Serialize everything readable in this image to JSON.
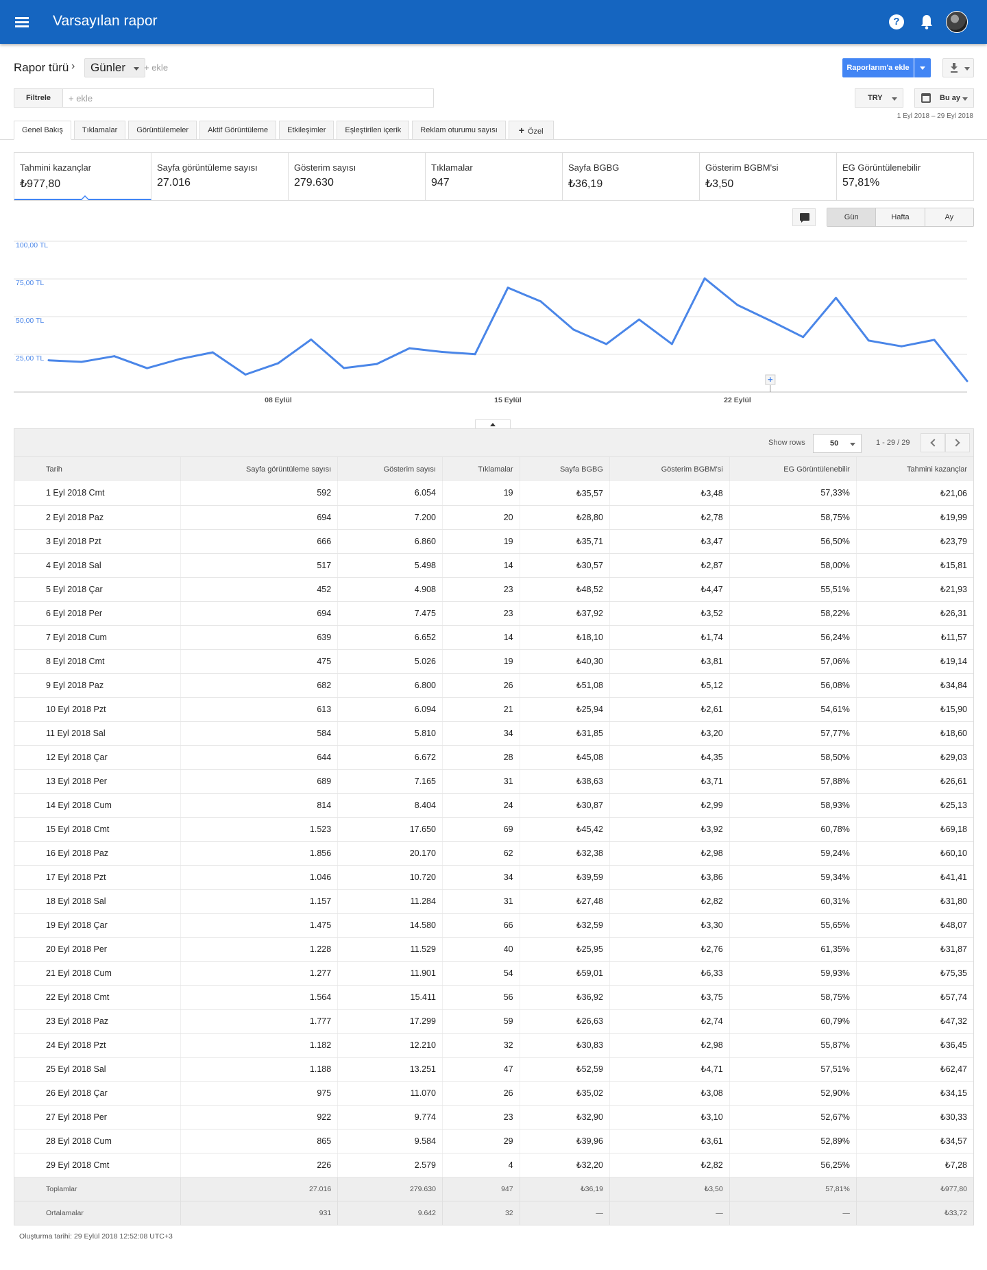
{
  "header": {
    "title": "Varsayılan rapor",
    "help_glyph": "?"
  },
  "colors": {
    "appbar": "#1565c0",
    "primary": "#4285f4",
    "line": "#4a86e8"
  },
  "breadcrumb": {
    "report_type": "Rapor türü",
    "separator": "›",
    "dimension": "Günler",
    "add": "+ ekle"
  },
  "actions": {
    "add_to_reports": "Raporlarım'a ekle",
    "download_icon": "download-icon"
  },
  "filter": {
    "label": "Filtrele",
    "placeholder": "+ ekle"
  },
  "currency": "TRY",
  "date_preset": "Bu ay",
  "date_range": "1 Eyl 2018 – 29 Eyl 2018",
  "tabs": [
    {
      "label": "Genel Bakış",
      "active": true
    },
    {
      "label": "Tıklamalar"
    },
    {
      "label": "Görüntülemeler"
    },
    {
      "label": "Aktif Görüntüleme"
    },
    {
      "label": "Etkileşimler"
    },
    {
      "label": "Eşleştirilen içerik"
    },
    {
      "label": "Reklam oturumu sayısı"
    },
    {
      "label": "Özel",
      "icon": "plus-icon"
    }
  ],
  "metrics": [
    {
      "label": "Tahmini kazançlar",
      "value": "₺977,80",
      "active": true
    },
    {
      "label": "Sayfa görüntüleme sayısı",
      "value": "27.016"
    },
    {
      "label": "Gösterim sayısı",
      "value": "279.630"
    },
    {
      "label": "Tıklamalar",
      "value": "947"
    },
    {
      "label": "Sayfa BGBG",
      "value": "₺36,19"
    },
    {
      "label": "Gösterim BGBM'si",
      "value": "₺3,50"
    },
    {
      "label": "EG Görüntülenebilir",
      "value": "57,81%"
    }
  ],
  "granularity": {
    "options": [
      "Gün",
      "Hafta",
      "Ay"
    ],
    "selected": "Gün"
  },
  "chart_data": {
    "type": "line",
    "series": [
      {
        "values": [
          21.06,
          19.99,
          23.79,
          15.81,
          21.93,
          26.31,
          11.57,
          19.14,
          34.84,
          15.9,
          18.6,
          29.03,
          26.61,
          25.13,
          69.18,
          60.1,
          41.41,
          31.8,
          48.07,
          31.87,
          75.35,
          57.74,
          47.32,
          36.45,
          62.47,
          34.15,
          30.33,
          34.57,
          7.28
        ]
      }
    ],
    "x": [
      "1 Eyl",
      "2 Eyl",
      "3 Eyl",
      "4 Eyl",
      "5 Eyl",
      "6 Eyl",
      "7 Eyl",
      "8 Eyl",
      "9 Eyl",
      "10 Eyl",
      "11 Eyl",
      "12 Eyl",
      "13 Eyl",
      "14 Eyl",
      "15 Eyl",
      "16 Eyl",
      "17 Eyl",
      "18 Eyl",
      "19 Eyl",
      "20 Eyl",
      "21 Eyl",
      "22 Eyl",
      "23 Eyl",
      "24 Eyl",
      "25 Eyl",
      "26 Eyl",
      "27 Eyl",
      "28 Eyl",
      "29 Eyl"
    ],
    "ylim": [
      0,
      100
    ],
    "yticks": [
      {
        "value": 100,
        "label": "100,00 TL"
      },
      {
        "value": 75,
        "label": "75,00 TL"
      },
      {
        "value": 50,
        "label": "50,00 TL"
      },
      {
        "value": 25,
        "label": "25,00 TL"
      }
    ],
    "xticks": [
      {
        "index": 7,
        "label": "08 Eylül"
      },
      {
        "index": 14,
        "label": "15 Eylül"
      },
      {
        "index": 21,
        "label": "22 Eylül"
      }
    ],
    "grid": true,
    "annotation_marker": {
      "index": 22,
      "label": "+"
    }
  },
  "table": {
    "show_rows_label": "Show rows",
    "rows_per_page": "50",
    "page_info": "1 - 29 / 29",
    "columns": [
      "Tarih",
      "Sayfa görüntüleme sayısı",
      "Gösterim sayısı",
      "Tıklamalar",
      "Sayfa BGBG",
      "Gösterim BGBM'si",
      "EG Görüntülenebilir",
      "Tahmini kazançlar"
    ],
    "rows": [
      [
        "1 Eyl 2018 Cmt",
        "592",
        "6.054",
        "19",
        "₺35,57",
        "₺3,48",
        "57,33%",
        "₺21,06"
      ],
      [
        "2 Eyl 2018 Paz",
        "694",
        "7.200",
        "20",
        "₺28,80",
        "₺2,78",
        "58,75%",
        "₺19,99"
      ],
      [
        "3 Eyl 2018 Pzt",
        "666",
        "6.860",
        "19",
        "₺35,71",
        "₺3,47",
        "56,50%",
        "₺23,79"
      ],
      [
        "4 Eyl 2018 Sal",
        "517",
        "5.498",
        "14",
        "₺30,57",
        "₺2,87",
        "58,00%",
        "₺15,81"
      ],
      [
        "5 Eyl 2018 Çar",
        "452",
        "4.908",
        "23",
        "₺48,52",
        "₺4,47",
        "55,51%",
        "₺21,93"
      ],
      [
        "6 Eyl 2018 Per",
        "694",
        "7.475",
        "23",
        "₺37,92",
        "₺3,52",
        "58,22%",
        "₺26,31"
      ],
      [
        "7 Eyl 2018 Cum",
        "639",
        "6.652",
        "14",
        "₺18,10",
        "₺1,74",
        "56,24%",
        "₺11,57"
      ],
      [
        "8 Eyl 2018 Cmt",
        "475",
        "5.026",
        "19",
        "₺40,30",
        "₺3,81",
        "57,06%",
        "₺19,14"
      ],
      [
        "9 Eyl 2018 Paz",
        "682",
        "6.800",
        "26",
        "₺51,08",
        "₺5,12",
        "56,08%",
        "₺34,84"
      ],
      [
        "10 Eyl 2018 Pzt",
        "613",
        "6.094",
        "21",
        "₺25,94",
        "₺2,61",
        "54,61%",
        "₺15,90"
      ],
      [
        "11 Eyl 2018 Sal",
        "584",
        "5.810",
        "34",
        "₺31,85",
        "₺3,20",
        "57,77%",
        "₺18,60"
      ],
      [
        "12 Eyl 2018 Çar",
        "644",
        "6.672",
        "28",
        "₺45,08",
        "₺4,35",
        "58,50%",
        "₺29,03"
      ],
      [
        "13 Eyl 2018 Per",
        "689",
        "7.165",
        "31",
        "₺38,63",
        "₺3,71",
        "57,88%",
        "₺26,61"
      ],
      [
        "14 Eyl 2018 Cum",
        "814",
        "8.404",
        "24",
        "₺30,87",
        "₺2,99",
        "58,93%",
        "₺25,13"
      ],
      [
        "15 Eyl 2018 Cmt",
        "1.523",
        "17.650",
        "69",
        "₺45,42",
        "₺3,92",
        "60,78%",
        "₺69,18"
      ],
      [
        "16 Eyl 2018 Paz",
        "1.856",
        "20.170",
        "62",
        "₺32,38",
        "₺2,98",
        "59,24%",
        "₺60,10"
      ],
      [
        "17 Eyl 2018 Pzt",
        "1.046",
        "10.720",
        "34",
        "₺39,59",
        "₺3,86",
        "59,34%",
        "₺41,41"
      ],
      [
        "18 Eyl 2018 Sal",
        "1.157",
        "11.284",
        "31",
        "₺27,48",
        "₺2,82",
        "60,31%",
        "₺31,80"
      ],
      [
        "19 Eyl 2018 Çar",
        "1.475",
        "14.580",
        "66",
        "₺32,59",
        "₺3,30",
        "55,65%",
        "₺48,07"
      ],
      [
        "20 Eyl 2018 Per",
        "1.228",
        "11.529",
        "40",
        "₺25,95",
        "₺2,76",
        "61,35%",
        "₺31,87"
      ],
      [
        "21 Eyl 2018 Cum",
        "1.277",
        "11.901",
        "54",
        "₺59,01",
        "₺6,33",
        "59,93%",
        "₺75,35"
      ],
      [
        "22 Eyl 2018 Cmt",
        "1.564",
        "15.411",
        "56",
        "₺36,92",
        "₺3,75",
        "58,75%",
        "₺57,74"
      ],
      [
        "23 Eyl 2018 Paz",
        "1.777",
        "17.299",
        "59",
        "₺26,63",
        "₺2,74",
        "60,79%",
        "₺47,32"
      ],
      [
        "24 Eyl 2018 Pzt",
        "1.182",
        "12.210",
        "32",
        "₺30,83",
        "₺2,98",
        "55,87%",
        "₺36,45"
      ],
      [
        "25 Eyl 2018 Sal",
        "1.188",
        "13.251",
        "47",
        "₺52,59",
        "₺4,71",
        "57,51%",
        "₺62,47"
      ],
      [
        "26 Eyl 2018 Çar",
        "975",
        "11.070",
        "26",
        "₺35,02",
        "₺3,08",
        "52,90%",
        "₺34,15"
      ],
      [
        "27 Eyl 2018 Per",
        "922",
        "9.774",
        "23",
        "₺32,90",
        "₺3,10",
        "52,67%",
        "₺30,33"
      ],
      [
        "28 Eyl 2018 Cum",
        "865",
        "9.584",
        "29",
        "₺39,96",
        "₺3,61",
        "52,89%",
        "₺34,57"
      ],
      [
        "29 Eyl 2018 Cmt",
        "226",
        "2.579",
        "4",
        "₺32,20",
        "₺2,82",
        "56,25%",
        "₺7,28"
      ]
    ],
    "totals": [
      "Toplamlar",
      "27.016",
      "279.630",
      "947",
      "₺36,19",
      "₺3,50",
      "57,81%",
      "₺977,80"
    ],
    "averages": [
      "Ortalamalar",
      "931",
      "9.642",
      "32",
      "—",
      "—",
      "—",
      "₺33,72"
    ]
  },
  "footer": {
    "created": "Oluşturma tarihi: 29 Eylül 2018 12:52:08 UTC+3"
  }
}
